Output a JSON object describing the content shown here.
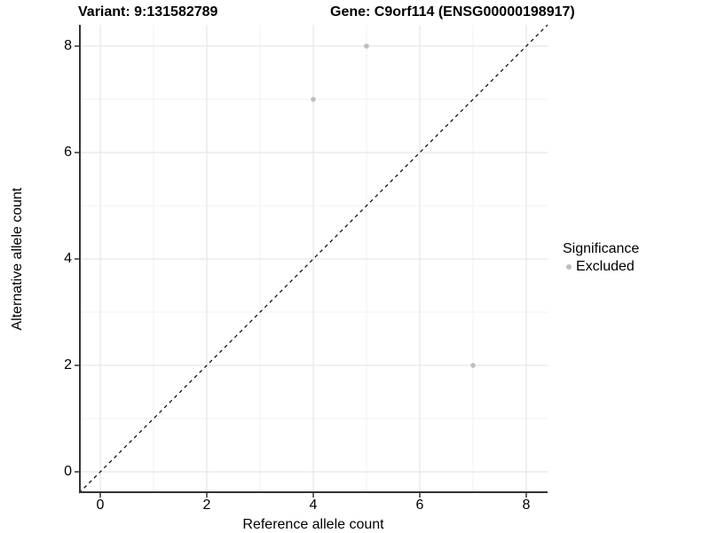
{
  "chart_data": {
    "type": "scatter",
    "title_left": "Variant: 9:131582789",
    "title_right": "Gene: C9orf114 (ENSG00000198917)",
    "xlabel": "Reference allele count",
    "ylabel": "Alternative allele count",
    "xlim": [
      -0.4,
      8.4
    ],
    "ylim": [
      -0.4,
      8.4
    ],
    "x_ticks": [
      0,
      2,
      4,
      6,
      8
    ],
    "y_ticks": [
      0,
      2,
      4,
      6,
      8
    ],
    "x_minor_ticks": [
      1,
      3,
      5,
      7
    ],
    "y_minor_ticks": [
      1,
      3,
      5,
      7
    ],
    "grid": "on",
    "series": [
      {
        "name": "Excluded",
        "marker": "circle",
        "color": "#bebebe",
        "points": [
          {
            "x": 4,
            "y": 7
          },
          {
            "x": 5,
            "y": 8
          },
          {
            "x": 7,
            "y": 2
          }
        ]
      }
    ],
    "reference_line": {
      "kind": "identity",
      "slope": 1,
      "intercept": 0,
      "style": "dashed",
      "color": "#000000"
    },
    "legend": {
      "title": "Significance",
      "position": "right",
      "items": [
        {
          "label": "Excluded",
          "color": "#bebebe",
          "marker": "circle"
        }
      ]
    },
    "colors": {
      "background": "#ffffff",
      "grid_major": "#e6e6e6",
      "grid_minor": "#f2f2f2",
      "axis_line": "#333333",
      "tick": "#333333",
      "text": "#000000",
      "point": "#bebebe"
    }
  }
}
